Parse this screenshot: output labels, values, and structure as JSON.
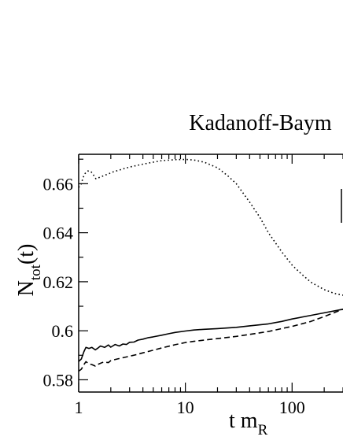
{
  "chart_data": {
    "type": "line",
    "title": "Kadanoff-Baym",
    "xlabel": "t m",
    "xlabel_sub": "R",
    "ylabel": "N",
    "ylabel_sub": "tot",
    "ylabel_suffix": "(t)",
    "x_scale": "log",
    "xlim": [
      1,
      300
    ],
    "ylim": [
      0.575,
      0.672
    ],
    "x_ticks": [
      {
        "value": 1,
        "label": "1"
      },
      {
        "value": 10,
        "label": "10"
      },
      {
        "value": 100,
        "label": "100"
      }
    ],
    "y_ticks": [
      {
        "value": 0.58,
        "label": "0.58"
      },
      {
        "value": 0.6,
        "label": "0.6"
      },
      {
        "value": 0.62,
        "label": "0.62"
      },
      {
        "value": 0.64,
        "label": "0.64"
      },
      {
        "value": 0.66,
        "label": "0.66"
      }
    ],
    "grid": false,
    "series": [
      {
        "style": "solid",
        "points": [
          [
            1.0,
            0.5875
          ],
          [
            1.06,
            0.5885
          ],
          [
            1.12,
            0.5915
          ],
          [
            1.17,
            0.5932
          ],
          [
            1.25,
            0.5928
          ],
          [
            1.33,
            0.5932
          ],
          [
            1.43,
            0.5922
          ],
          [
            1.5,
            0.5928
          ],
          [
            1.6,
            0.5938
          ],
          [
            1.75,
            0.5932
          ],
          [
            1.9,
            0.5942
          ],
          [
            2.0,
            0.5933
          ],
          [
            2.2,
            0.5944
          ],
          [
            2.4,
            0.5938
          ],
          [
            2.6,
            0.5946
          ],
          [
            2.8,
            0.5944
          ],
          [
            3.0,
            0.5953
          ],
          [
            3.3,
            0.5954
          ],
          [
            3.6,
            0.5962
          ],
          [
            4.0,
            0.5966
          ],
          [
            4.5,
            0.5972
          ],
          [
            5.0,
            0.5975
          ],
          [
            6.0,
            0.5982
          ],
          [
            7.0,
            0.5988
          ],
          [
            8.0,
            0.5993
          ],
          [
            10,
            0.5999
          ],
          [
            12,
            0.6003
          ],
          [
            15,
            0.6006
          ],
          [
            20,
            0.6009
          ],
          [
            30,
            0.6014
          ],
          [
            40,
            0.602
          ],
          [
            60,
            0.6028
          ],
          [
            80,
            0.6038
          ],
          [
            100,
            0.6048
          ],
          [
            150,
            0.6063
          ],
          [
            200,
            0.6073
          ],
          [
            300,
            0.6088
          ]
        ]
      },
      {
        "style": "dashed",
        "points": [
          [
            1.0,
            0.5835
          ],
          [
            1.06,
            0.5843
          ],
          [
            1.12,
            0.5862
          ],
          [
            1.17,
            0.5874
          ],
          [
            1.25,
            0.5865
          ],
          [
            1.33,
            0.5862
          ],
          [
            1.43,
            0.5856
          ],
          [
            1.5,
            0.5862
          ],
          [
            1.7,
            0.5872
          ],
          [
            1.9,
            0.587
          ],
          [
            2.0,
            0.5878
          ],
          [
            2.3,
            0.5885
          ],
          [
            2.6,
            0.589
          ],
          [
            3.0,
            0.5896
          ],
          [
            3.5,
            0.5903
          ],
          [
            4.0,
            0.591
          ],
          [
            5.0,
            0.5921
          ],
          [
            6.0,
            0.593
          ],
          [
            7.0,
            0.5937
          ],
          [
            8.0,
            0.5943
          ],
          [
            10,
            0.5952
          ],
          [
            12,
            0.5957
          ],
          [
            15,
            0.5962
          ],
          [
            20,
            0.5968
          ],
          [
            30,
            0.5977
          ],
          [
            40,
            0.5985
          ],
          [
            60,
            0.5997
          ],
          [
            80,
            0.6009
          ],
          [
            100,
            0.6018
          ],
          [
            150,
            0.6038
          ],
          [
            200,
            0.6058
          ],
          [
            300,
            0.6088
          ]
        ]
      },
      {
        "style": "dotted",
        "points": [
          [
            1.0,
            0.6585
          ],
          [
            1.05,
            0.6595
          ],
          [
            1.1,
            0.6625
          ],
          [
            1.15,
            0.6642
          ],
          [
            1.22,
            0.6652
          ],
          [
            1.3,
            0.665
          ],
          [
            1.38,
            0.6635
          ],
          [
            1.45,
            0.662
          ],
          [
            1.55,
            0.6625
          ],
          [
            1.7,
            0.6632
          ],
          [
            1.9,
            0.664
          ],
          [
            2.1,
            0.6648
          ],
          [
            2.5,
            0.6658
          ],
          [
            3.0,
            0.6668
          ],
          [
            4.0,
            0.668
          ],
          [
            5.0,
            0.6688
          ],
          [
            6.0,
            0.6694
          ],
          [
            8.0,
            0.6698
          ],
          [
            10,
            0.6699
          ],
          [
            12,
            0.6697
          ],
          [
            15,
            0.6688
          ],
          [
            20,
            0.6665
          ],
          [
            25,
            0.6632
          ],
          [
            30,
            0.66
          ],
          [
            40,
            0.6525
          ],
          [
            50,
            0.6462
          ],
          [
            60,
            0.64
          ],
          [
            80,
            0.6322
          ],
          [
            100,
            0.6268
          ],
          [
            120,
            0.6235
          ],
          [
            150,
            0.6198
          ],
          [
            200,
            0.6168
          ],
          [
            250,
            0.6152
          ],
          [
            300,
            0.6145
          ]
        ]
      }
    ]
  }
}
